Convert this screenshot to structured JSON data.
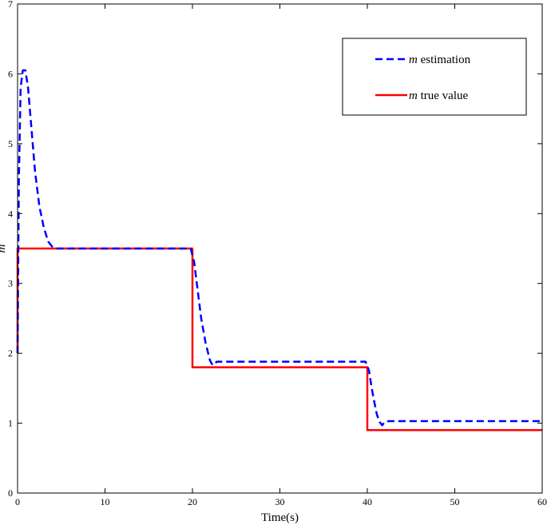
{
  "chart_data": {
    "type": "line",
    "xlabel": "Time(s)",
    "ylabel": "m",
    "xlim": [
      0,
      60
    ],
    "ylim": [
      0,
      7
    ],
    "x_ticks": [
      0,
      10,
      20,
      30,
      40,
      50,
      60
    ],
    "y_ticks": [
      0,
      1,
      2,
      3,
      4,
      5,
      6,
      7
    ],
    "grid": false,
    "legend_position": "top-right",
    "series": [
      {
        "name": "m estimation",
        "legend_symbol": "m",
        "legend_suffix": " estimation",
        "color": "#0000ff",
        "style": "dashed",
        "x": [
          0,
          0.15,
          0.35,
          0.6,
          0.9,
          1.2,
          1.6,
          2.0,
          2.5,
          3.0,
          3.5,
          4.0,
          4.5,
          5.0,
          10,
          15,
          19.8,
          20.2,
          20.6,
          21.0,
          21.5,
          22.0,
          22.3,
          22.8,
          25,
          30,
          35,
          39.8,
          40.2,
          40.5,
          40.8,
          41.1,
          41.4,
          41.7,
          42.0,
          42.5,
          45,
          50,
          55,
          60
        ],
        "y": [
          2.0,
          4.5,
          5.8,
          6.05,
          6.05,
          5.8,
          5.2,
          4.6,
          4.1,
          3.8,
          3.6,
          3.52,
          3.5,
          3.5,
          3.5,
          3.5,
          3.5,
          3.3,
          2.9,
          2.5,
          2.15,
          1.9,
          1.83,
          1.88,
          1.88,
          1.88,
          1.88,
          1.88,
          1.75,
          1.5,
          1.3,
          1.12,
          1.02,
          0.97,
          1.02,
          1.03,
          1.03,
          1.03,
          1.03,
          1.03
        ]
      },
      {
        "name": "m true value",
        "legend_symbol": "m",
        "legend_suffix": " true value",
        "color": "#ff0000",
        "style": "solid",
        "x": [
          0,
          0,
          20,
          20,
          40,
          40,
          60
        ],
        "y": [
          2.0,
          3.5,
          3.5,
          1.8,
          1.8,
          0.9,
          0.9
        ]
      }
    ]
  }
}
